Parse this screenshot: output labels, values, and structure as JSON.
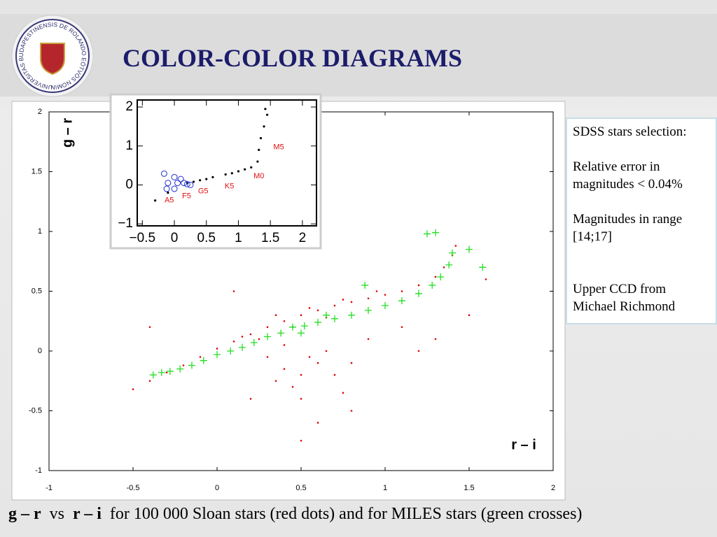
{
  "slide": {
    "title": "COLOR-COLOR DIAGRAMS",
    "logo_text": "UNIVERSITAS BUDAPESTINENSIS DE ROLANDO EÖTVÖS NOMINATA",
    "notes": [
      "SDSS stars selection:",
      "Relative error in magnitudes < 0.04%",
      "Magnitudes in range [14;17]",
      "Upper CCD from Michael Richmond"
    ],
    "caption": {
      "y_name": "g – r",
      "joiner": "vs",
      "x_name": "r – i",
      "text": "for 100 000 Sloan stars (red dots) and for MILES stars (green crosses)"
    }
  },
  "chart_data": [
    {
      "type": "scatter",
      "x_label": "r – i",
      "y_label": "g – r",
      "xlim": [
        -1,
        2
      ],
      "ylim": [
        -1,
        2
      ],
      "xticks": [
        -1,
        -0.5,
        0,
        0.5,
        1,
        1.5,
        2
      ],
      "yticks": [
        -1,
        -0.5,
        0,
        0.5,
        1,
        1.5,
        2
      ],
      "series": [
        {
          "color": "#e00000",
          "marker": "dot",
          "x": [
            -0.5,
            -0.4,
            -0.3,
            -0.2,
            -0.1,
            0,
            0.1,
            0.2,
            0.3,
            0.4,
            0.5,
            0.6,
            0.7,
            0.8,
            0.9,
            1.0,
            1.1,
            1.2,
            1.3,
            1.35,
            1.4,
            1.42,
            0.35,
            0.55,
            0.75,
            0.45,
            0.65,
            0.25,
            0.15,
            0.95,
            0.4,
            0.5,
            0.6,
            0.45,
            0.55,
            0.35,
            0.7,
            0.5,
            0.65,
            0.8,
            0.3,
            0.9,
            1.1,
            1.2,
            0.6,
            0.8,
            0.2,
            1.3,
            0.4,
            0.75,
            -0.4,
            1.5,
            0.1,
            1.6,
            0.5
          ],
          "values": [
            -0.32,
            -0.25,
            -0.18,
            -0.12,
            -0.05,
            0.02,
            0.08,
            0.14,
            0.2,
            0.25,
            0.3,
            0.34,
            0.38,
            0.41,
            0.44,
            0.47,
            0.5,
            0.55,
            0.62,
            0.7,
            0.8,
            0.88,
            0.3,
            0.36,
            0.43,
            0.2,
            0.28,
            0.1,
            0.12,
            0.5,
            -0.15,
            -0.2,
            -0.1,
            -0.3,
            -0.05,
            -0.25,
            -0.2,
            -0.4,
            0.0,
            -0.1,
            -0.05,
            0.1,
            0.2,
            0.0,
            -0.6,
            -0.5,
            -0.4,
            0.1,
            0.05,
            -0.35,
            0.2,
            0.3,
            0.5,
            0.6,
            -0.75
          ]
        },
        {
          "color": "#22dd22",
          "marker": "cross",
          "x": [
            -0.38,
            -0.33,
            -0.28,
            -0.22,
            -0.15,
            -0.08,
            0,
            0.08,
            0.15,
            0.22,
            0.3,
            0.38,
            0.45,
            0.52,
            0.6,
            0.7,
            0.8,
            0.9,
            1.0,
            1.1,
            1.2,
            1.28,
            1.33,
            1.38,
            1.4,
            1.25,
            1.3,
            1.5,
            1.58,
            0.88,
            0.5,
            0.65
          ],
          "values": [
            -0.2,
            -0.18,
            -0.17,
            -0.15,
            -0.12,
            -0.08,
            -0.03,
            0.0,
            0.03,
            0.07,
            0.12,
            0.15,
            0.2,
            0.21,
            0.24,
            0.27,
            0.3,
            0.34,
            0.38,
            0.42,
            0.48,
            0.55,
            0.62,
            0.72,
            0.82,
            0.98,
            0.99,
            0.85,
            0.7,
            0.55,
            0.15,
            0.3
          ]
        }
      ]
    },
    {
      "type": "scatter",
      "xlim": [
        -0.58,
        2.22
      ],
      "ylim": [
        -1.05,
        2.18
      ],
      "xticks": [
        {
          "value": -0.5,
          "label": "−0.5"
        },
        0,
        0.5,
        1,
        1.5,
        2
      ],
      "yticks": [
        {
          "value": -1,
          "label": "−1"
        },
        0,
        1,
        2
      ],
      "series": [
        {
          "color": "#000000",
          "marker": "dot",
          "x": [
            -0.3,
            -0.1,
            0.2,
            0.4,
            0.6,
            0.8,
            1.0,
            1.2,
            1.3,
            1.32,
            1.35,
            1.4,
            1.45,
            1.42,
            0.5,
            0.9,
            1.1,
            0.3
          ],
          "values": [
            -0.4,
            -0.2,
            0.05,
            0.12,
            0.2,
            0.27,
            0.35,
            0.45,
            0.6,
            0.9,
            1.2,
            1.5,
            1.8,
            1.95,
            0.15,
            0.3,
            0.4,
            0.08
          ]
        },
        {
          "color": "#2233cc",
          "marker": "circle",
          "x": [
            -0.16,
            -0.1,
            0,
            0.05,
            0.1,
            0.15,
            0,
            -0.12,
            0.2,
            0.25
          ],
          "values": [
            0.29,
            0.05,
            0.2,
            0.05,
            0.15,
            0.05,
            -0.1,
            -0.1,
            0.02,
            0.0
          ]
        }
      ],
      "annotations": [
        {
          "text": "A5",
          "x": -0.08,
          "y": -0.4
        },
        {
          "text": "F5",
          "x": 0.19,
          "y": -0.29
        },
        {
          "text": "G5",
          "x": 0.45,
          "y": -0.16
        },
        {
          "text": "K5",
          "x": 0.86,
          "y": -0.04
        },
        {
          "text": "M0",
          "x": 1.32,
          "y": 0.22
        },
        {
          "text": "M5",
          "x": 1.63,
          "y": 0.97
        }
      ]
    }
  ]
}
